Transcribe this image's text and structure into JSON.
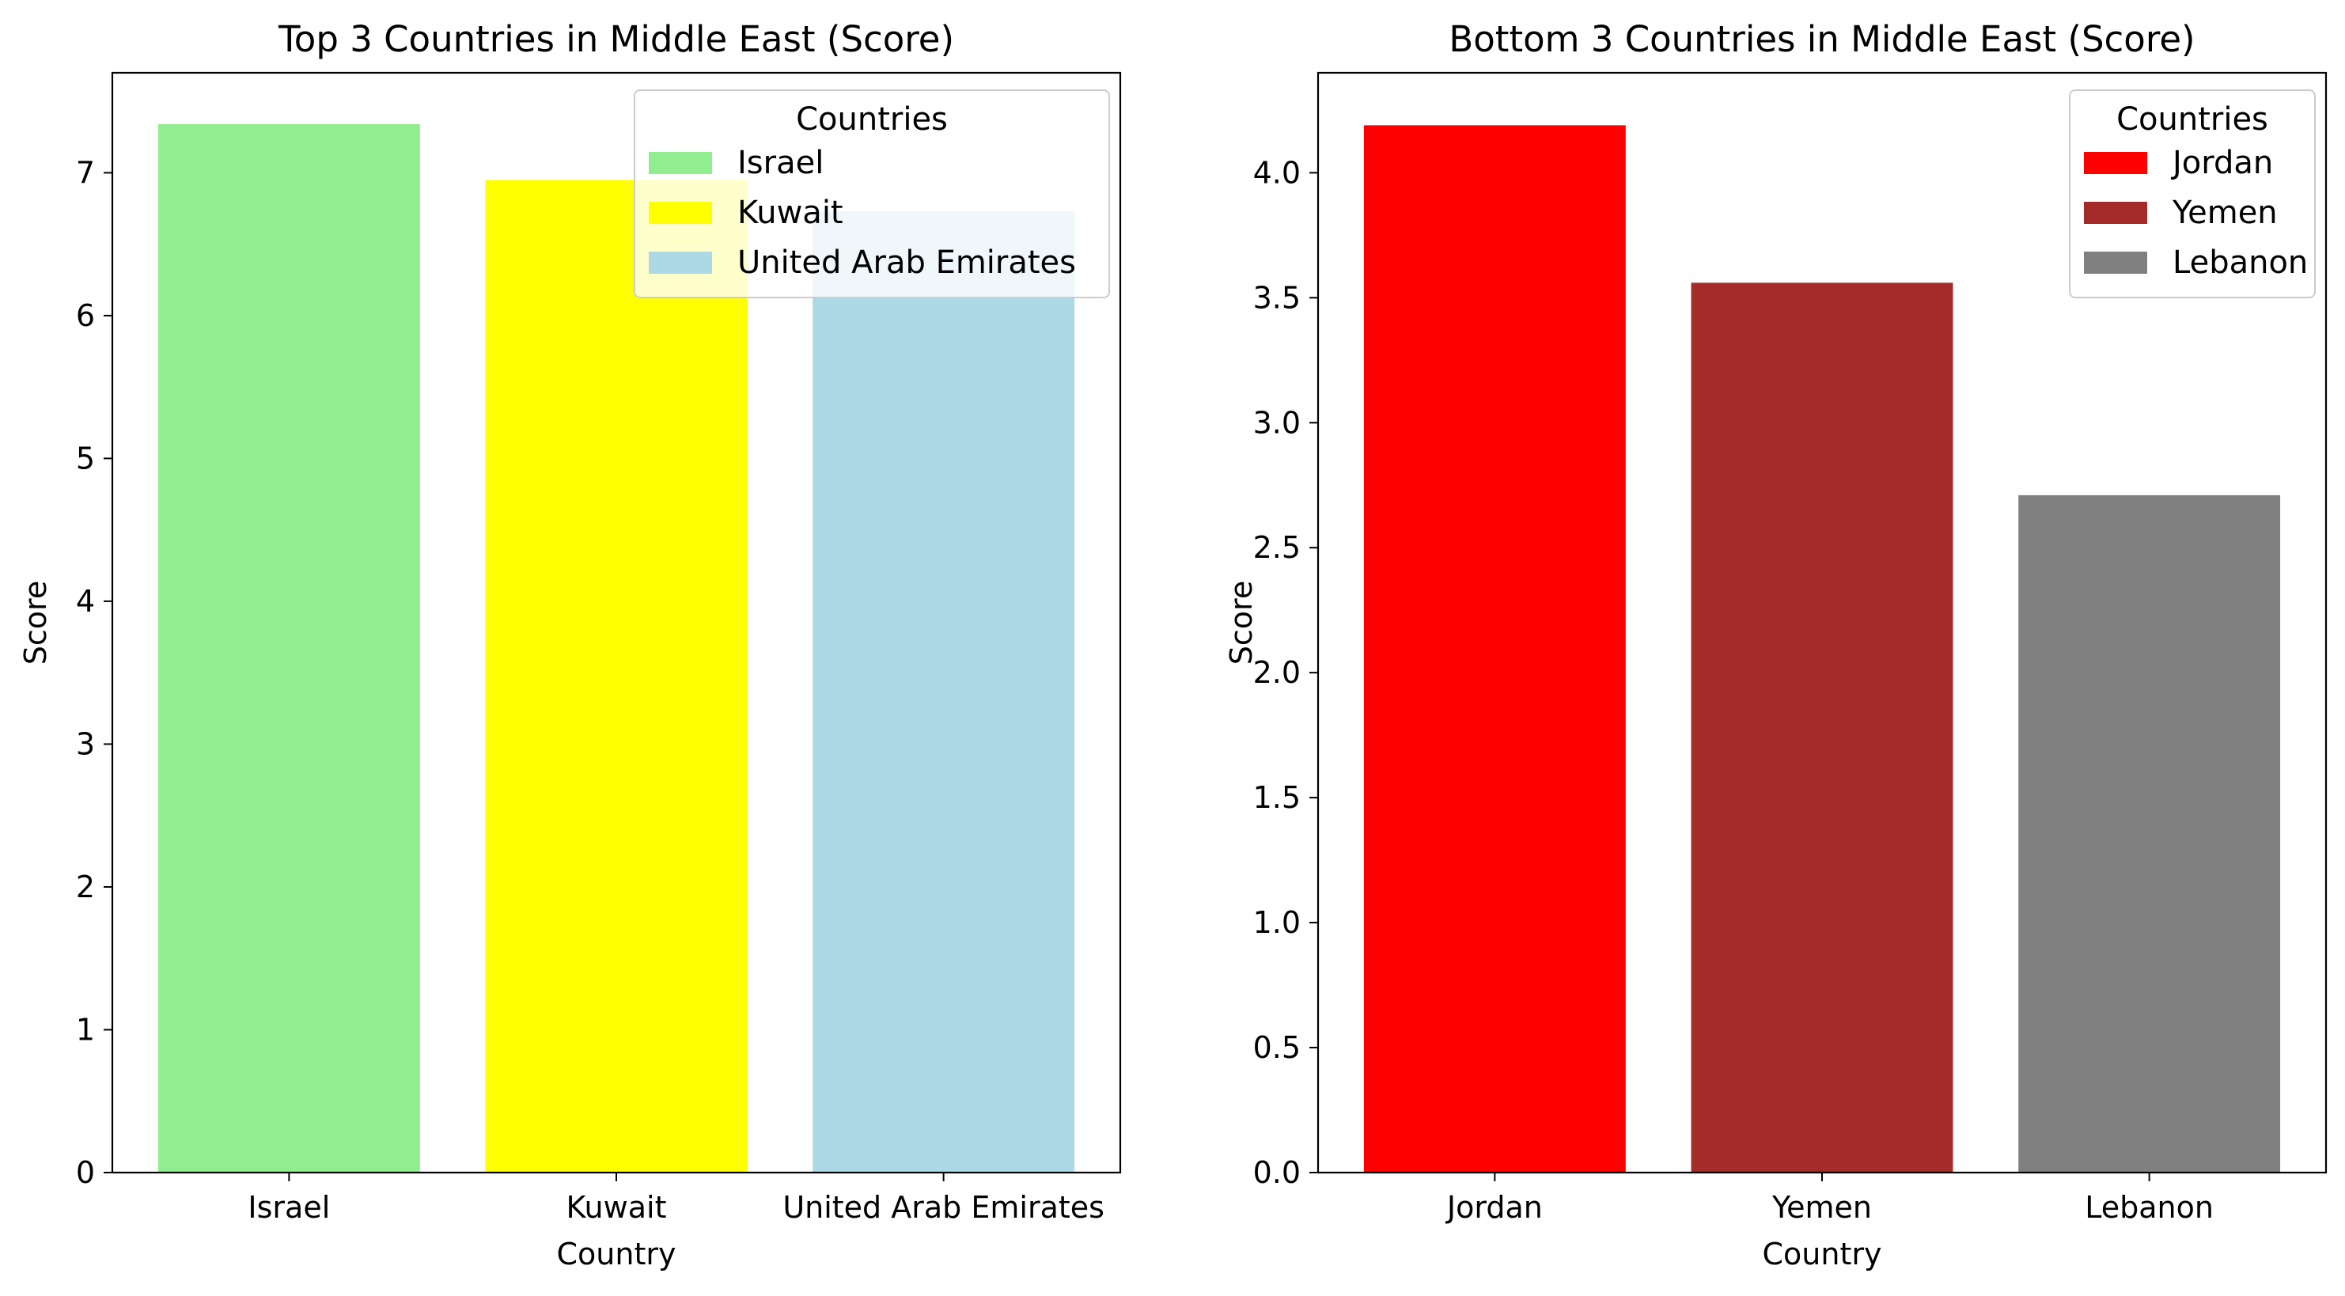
{
  "chart_data": [
    {
      "type": "bar",
      "title": "Top 3 Countries in Middle East (Score)",
      "xlabel": "Country",
      "ylabel": "Score",
      "categories": [
        "Israel",
        "Kuwait",
        "United Arab Emirates"
      ],
      "values": [
        7.34,
        6.95,
        6.73
      ],
      "colors": [
        "#90ee90",
        "#ffff00",
        "#add8e6"
      ],
      "ylim": [
        0,
        7.7
      ],
      "yticks": [
        "0",
        "1",
        "2",
        "3",
        "4",
        "5",
        "6",
        "7"
      ],
      "legend": {
        "title": "Countries",
        "placement": "top-right",
        "entries": [
          "Israel",
          "Kuwait",
          "United Arab Emirates"
        ]
      },
      "grid": false
    },
    {
      "type": "bar",
      "title": "Bottom 3 Countries in Middle East (Score)",
      "xlabel": "Country",
      "ylabel": "Score",
      "categories": [
        "Jordan",
        "Yemen",
        "Lebanon"
      ],
      "values": [
        4.19,
        3.56,
        2.71
      ],
      "colors": [
        "#ff0000",
        "#a52a2a",
        "#808080"
      ],
      "ylim": [
        0,
        4.4
      ],
      "yticks": [
        "0.0",
        "0.5",
        "1.0",
        "1.5",
        "2.0",
        "2.5",
        "3.0",
        "3.5",
        "4.0"
      ],
      "legend": {
        "title": "Countries",
        "placement": "top-right",
        "entries": [
          "Jordan",
          "Yemen",
          "Lebanon"
        ]
      },
      "grid": false
    }
  ]
}
